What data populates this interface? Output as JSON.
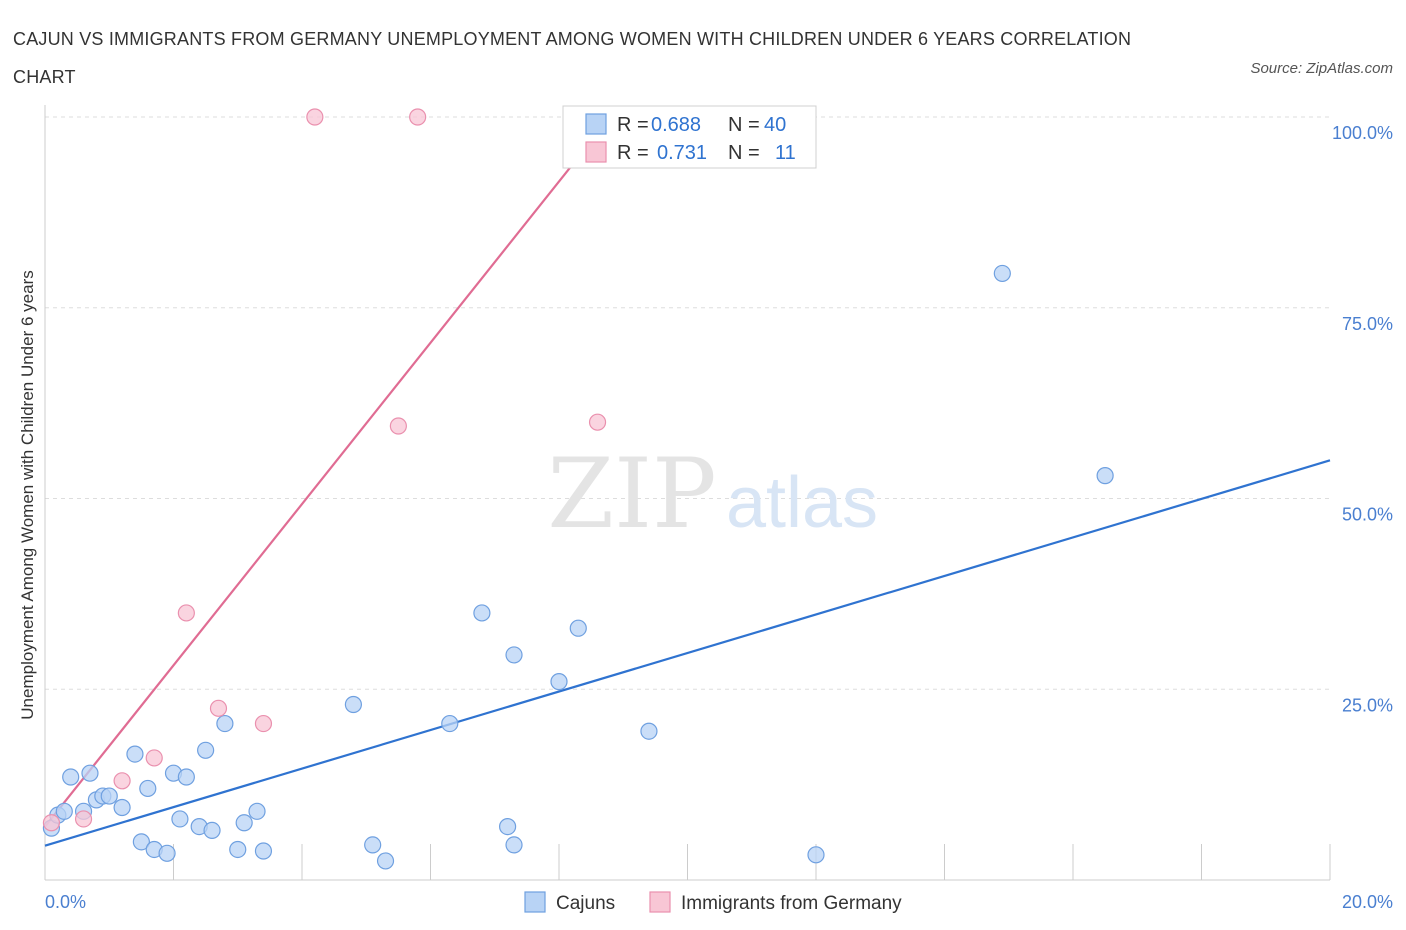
{
  "title": "CAJUN VS IMMIGRANTS FROM GERMANY UNEMPLOYMENT AMONG WOMEN WITH CHILDREN UNDER 6 YEARS CORRELATION CHART",
  "source": "Source: ZipAtlas.com",
  "watermark": {
    "zip": "ZIP",
    "atlas": "atlas"
  },
  "colors": {
    "cajun_fill": "#b8d3f5",
    "cajun_stroke": "#6fa0e0",
    "cajun_line": "#2f73d0",
    "germany_fill": "#f8c6d5",
    "germany_stroke": "#ea90ae",
    "germany_line": "#e06c93",
    "accent_text": "#4a7fd0",
    "grid": "#dddddd"
  },
  "legend_box": {
    "rows": [
      {
        "r_label": "R =",
        "r_value": "0.688",
        "n_label": "N =",
        "n_value": "40"
      },
      {
        "r_label": "R =",
        "r_value": "0.731",
        "n_label": "N =",
        "n_value": "11"
      }
    ]
  },
  "bottom_legend": [
    "Cajuns",
    "Immigrants from Germany"
  ],
  "chart_data": {
    "type": "scatter",
    "title": "CAJUN VS IMMIGRANTS FROM GERMANY UNEMPLOYMENT AMONG WOMEN WITH CHILDREN UNDER 6 YEARS CORRELATION CHART",
    "xlabel": "",
    "ylabel": "Unemployment Among Women with Children Under 6 years",
    "xlim": [
      0,
      20
    ],
    "ylim": [
      0,
      100
    ],
    "x_tick_labels": [
      "0.0%",
      "20.0%"
    ],
    "y_tick_labels": [
      "100.0%",
      "75.0%",
      "50.0%",
      "25.0%"
    ],
    "y_ticks": [
      100,
      75,
      50,
      25
    ],
    "legend_placement": "top-center",
    "grid": true,
    "series": [
      {
        "name": "Cajuns",
        "points": [
          [
            0.1,
            6.8
          ],
          [
            0.2,
            8.5
          ],
          [
            0.3,
            9.0
          ],
          [
            0.4,
            13.5
          ],
          [
            0.6,
            9.0
          ],
          [
            0.7,
            14.0
          ],
          [
            0.8,
            10.5
          ],
          [
            0.9,
            11.0
          ],
          [
            1.0,
            11.0
          ],
          [
            1.2,
            9.5
          ],
          [
            1.4,
            16.5
          ],
          [
            1.5,
            5.0
          ],
          [
            1.6,
            12.0
          ],
          [
            1.7,
            4.0
          ],
          [
            1.9,
            3.5
          ],
          [
            2.0,
            14.0
          ],
          [
            2.1,
            8.0
          ],
          [
            2.2,
            13.5
          ],
          [
            2.4,
            7.0
          ],
          [
            2.5,
            17.0
          ],
          [
            2.6,
            6.5
          ],
          [
            2.8,
            20.5
          ],
          [
            3.0,
            4.0
          ],
          [
            3.1,
            7.5
          ],
          [
            3.3,
            9.0
          ],
          [
            3.4,
            3.8
          ],
          [
            4.8,
            23.0
          ],
          [
            5.1,
            4.6
          ],
          [
            5.3,
            2.5
          ],
          [
            6.3,
            20.5
          ],
          [
            6.8,
            35.0
          ],
          [
            7.2,
            7.0
          ],
          [
            7.3,
            4.6
          ],
          [
            7.3,
            29.5
          ],
          [
            8.0,
            26.0
          ],
          [
            8.3,
            33.0
          ],
          [
            9.4,
            19.5
          ],
          [
            12.0,
            3.3
          ],
          [
            14.9,
            79.5
          ],
          [
            16.5,
            53.0
          ]
        ],
        "trend": [
          [
            0,
            4.5
          ],
          [
            20,
            55.0
          ]
        ]
      },
      {
        "name": "Immigrants from Germany",
        "points": [
          [
            0.1,
            7.5
          ],
          [
            0.6,
            8.0
          ],
          [
            1.2,
            13.0
          ],
          [
            1.7,
            16.0
          ],
          [
            2.2,
            35.0
          ],
          [
            2.7,
            22.5
          ],
          [
            3.4,
            20.5
          ],
          [
            4.2,
            100.0
          ],
          [
            5.5,
            59.5
          ],
          [
            5.8,
            100.0
          ],
          [
            8.6,
            60.0
          ]
        ],
        "trend": [
          [
            0,
            7.0
          ],
          [
            8.8,
            100.0
          ]
        ]
      }
    ]
  }
}
